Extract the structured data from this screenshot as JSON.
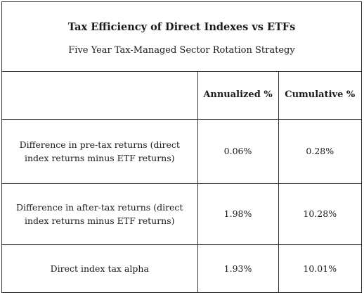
{
  "title": "Tax Efficiency of Direct Indexes vs ETFs",
  "subtitle": "Five Year Tax-Managed Sector Rotation Strategy",
  "table": {
    "headers": [
      "",
      "Annualized %",
      "Cumulative %"
    ],
    "rows": [
      {
        "label": "Difference in pre-tax returns (direct index returns minus ETF returns)",
        "annualized": "0.06%",
        "cumulative": "0.28%"
      },
      {
        "label": "Difference in after-tax returns (direct index returns minus ETF returns)",
        "annualized": "1.98%",
        "cumulative": "10.28%"
      },
      {
        "label": "Direct index tax alpha",
        "annualized": "1.93%",
        "cumulative": "10.01%"
      }
    ]
  }
}
